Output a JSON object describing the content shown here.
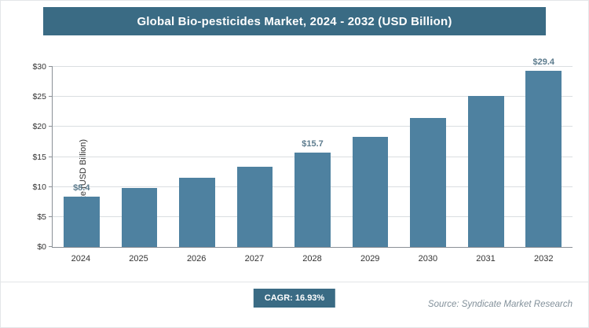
{
  "header": {
    "title": "Global Bio-pesticides Market, 2024 - 2032 (USD Billion)"
  },
  "chart_data": {
    "type": "bar",
    "title": "Global Bio-pesticides Market, 2024 - 2032 (USD Billion)",
    "categories": [
      "2024",
      "2025",
      "2026",
      "2027",
      "2028",
      "2029",
      "2030",
      "2031",
      "2032"
    ],
    "values": [
      8.4,
      9.8,
      11.5,
      13.4,
      15.7,
      18.3,
      21.5,
      25.1,
      29.4
    ],
    "data_labels": [
      "$8.4",
      "",
      "",
      "",
      "$15.7",
      "",
      "",
      "",
      "$29.4"
    ],
    "xlabel": "",
    "ylabel": "Market Size (USD Billion)",
    "ylim": [
      0,
      30
    ],
    "ytick_values": [
      0,
      5,
      10,
      15,
      20,
      25,
      30
    ],
    "ytick_labels": [
      "$0",
      "$5",
      "$10",
      "$15",
      "$20",
      "$25",
      "$30"
    ],
    "grid": true,
    "legend": "none",
    "bar_color": "#4e81a0"
  },
  "footer": {
    "cagr_label": "CAGR: 16.93%",
    "source": "Source: Syndicate Market Research"
  },
  "colors": {
    "header_bg": "#3a6b84",
    "bar": "#4e81a0",
    "badge_bg": "#3a6b84",
    "grid": "#dadee1",
    "axis": "#8a9096",
    "value_label": "#5c7b8d",
    "source_text": "#82909a"
  }
}
